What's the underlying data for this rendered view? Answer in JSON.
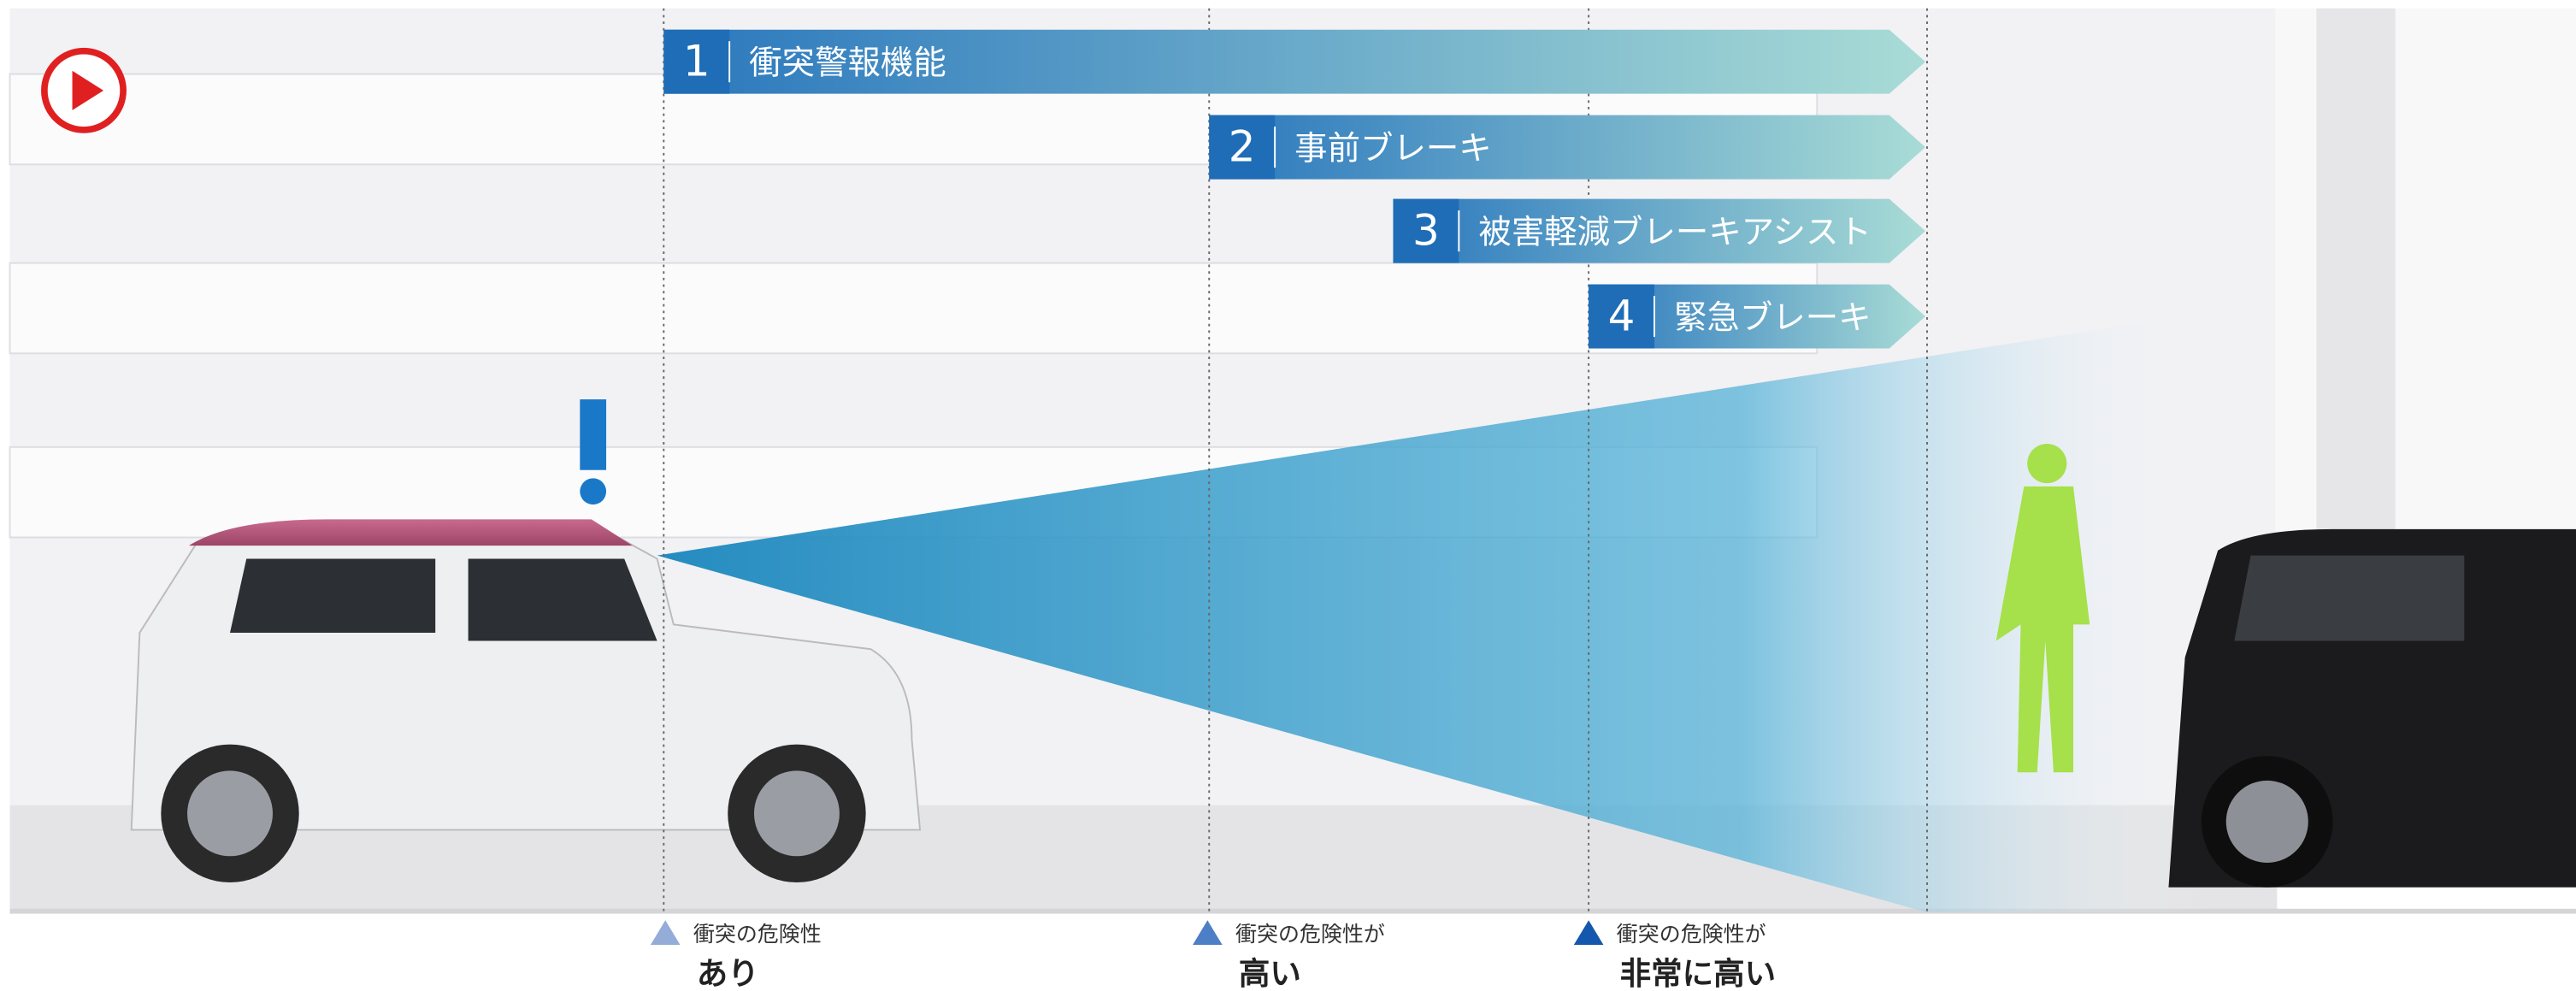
{
  "stages": [
    {
      "number": "1",
      "label": "衝突警報機能"
    },
    {
      "number": "2",
      "label": "事前ブレーキ"
    },
    {
      "number": "3",
      "label": "被害軽減ブレーキアシスト"
    },
    {
      "number": "4",
      "label": "緊急ブレーキ"
    }
  ],
  "markers": [
    {
      "caption": "衝突の危険性",
      "level": "あり"
    },
    {
      "caption": "衝突の危険性が",
      "level": "高い"
    },
    {
      "caption": "衝突の危険性が",
      "level": "非常に高い"
    }
  ]
}
